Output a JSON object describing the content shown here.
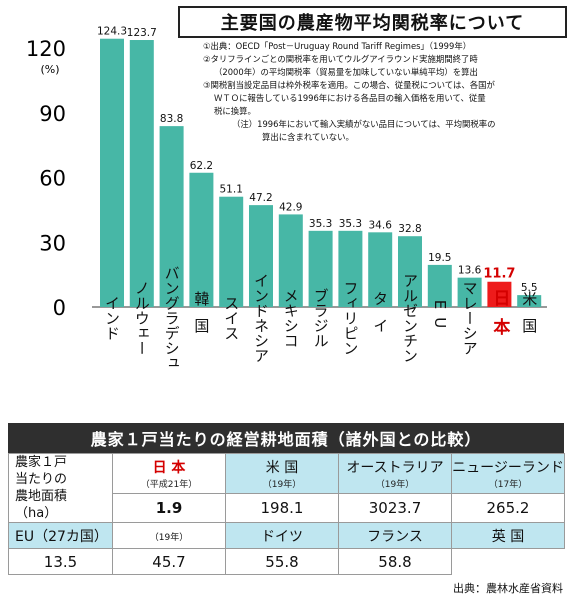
{
  "chart_data": {
    "type": "bar",
    "title": "主要国の農産物平均関税率について",
    "ylabel": "(%)",
    "ylim": [
      0,
      130
    ],
    "yticks": [
      0,
      30,
      60,
      90,
      120
    ],
    "categories": [
      "インド",
      "ノルウェー",
      "バングラデシュ",
      "韓国",
      "スイス",
      "インドネシア",
      "メキシコ",
      "ブラジル",
      "フィリピン",
      "タイ",
      "アルゼンチン",
      "EU",
      "マレーシア",
      "日本",
      "米国"
    ],
    "values": [
      124.3,
      123.7,
      83.8,
      62.2,
      51.1,
      47.2,
      42.9,
      35.3,
      35.3,
      34.6,
      32.8,
      19.5,
      13.6,
      11.7,
      5.5
    ],
    "value_labels": [
      "124.3",
      "123.7",
      "83.8",
      "62.2",
      "51.1",
      "47.2",
      "42.9",
      "35.3",
      "35.3",
      "34.6",
      "32.8",
      "19.5",
      "13.6",
      "11.7",
      "5.5"
    ],
    "highlight": "日本",
    "colors": {
      "bar": "#47b7a6",
      "highlight_bar": "#ee1b1b",
      "highlight_label": "#d40000"
    },
    "grid": false
  },
  "notes": [
    "①出典：OECD「Post－Uruguay Round Tariff Regimes」（1999年）",
    "②タリフラインごとの関税率を用いてウルグアイラウンド実施期間終了時",
    "（2000年）の平均関税率（貿易量を加味していない単純平均）を算出",
    "③関税割当設定品目は枠外税率を適用。この場合、従量税については、各国が",
    "ＷＴＯに報告している1996年における各品目の輸入価格を用いて、従量",
    "税に換算。",
    "（注）1996年において輸入実績がない品目については、平均関税率の",
    "算出に含まれていない。"
  ],
  "area_table": {
    "title": "農家１戸当たりの経営耕地面積（諸外国との比較）",
    "row_header": [
      "農家１戸",
      "当たりの",
      "農地面積",
      "（ha）"
    ],
    "row1": [
      {
        "name": "日 本",
        "year": "（平成21年）",
        "value": "1.9",
        "highlight": true
      },
      {
        "name": "米 国",
        "year": "（19年）",
        "value": "198.1"
      },
      {
        "name": "オーストラリア",
        "year": "（19年）",
        "value": "3023.7"
      },
      {
        "name": "ニュージーランド",
        "year": "（17年）",
        "value": "265.2"
      }
    ],
    "row2": [
      {
        "name": "EU（27カ国）",
        "year": "（19年）",
        "value": "13.5"
      },
      {
        "name": "ドイツ",
        "year": "",
        "value": "45.7"
      },
      {
        "name": "フランス",
        "year": "",
        "value": "55.8"
      },
      {
        "name": "英 国",
        "year": "",
        "value": "58.8"
      }
    ]
  },
  "source": "出典：農林水産省資料"
}
